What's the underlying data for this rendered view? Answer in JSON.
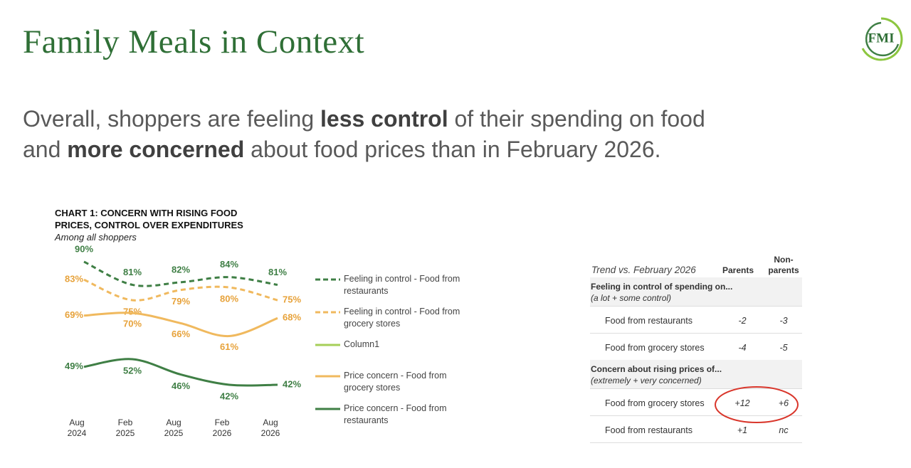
{
  "header": {
    "title": "Family Meals in Context",
    "logo": "FMI"
  },
  "headline": [
    "Overall, shoppers are feeling ",
    "less control",
    " of their spending on food",
    "and ",
    "more concerned",
    " about food prices than in February 2026."
  ],
  "chart_data": {
    "type": "line",
    "title": "CHART 1: CONCERN WITH RISING FOOD PRICES, CONTROL OVER EXPENDITURES",
    "subtitle": "Among all shoppers",
    "categories": [
      "Aug 2024",
      "Feb 2025",
      "Aug 2025",
      "Feb 2026",
      "Aug 2026"
    ],
    "series": [
      {
        "name": "Feeling in control - Food from restaurants",
        "color": "#3f7f45",
        "dashed": true,
        "values": [
          90,
          81,
          82,
          84,
          81
        ],
        "value_labels": [
          "90%",
          "81%",
          "82%",
          "84%",
          "81%"
        ]
      },
      {
        "name": "Feeling in control - Food from grocery stores",
        "color": "#f0b95e",
        "dashed": true,
        "values": [
          83,
          75,
          79,
          80,
          75
        ],
        "value_labels": [
          "83%",
          "75%",
          "79%",
          "80%",
          "75%"
        ]
      },
      {
        "name": "Column1",
        "color": "#a6cf58",
        "dashed": false,
        "values": [
          null,
          null,
          null,
          null,
          null
        ]
      },
      {
        "name": "Price concern - Food from grocery stores",
        "color": "#f0b95e",
        "dashed": false,
        "values": [
          69,
          70,
          66,
          61,
          68
        ],
        "value_labels": [
          "69%",
          "70%",
          "66%",
          "61%",
          "68%"
        ]
      },
      {
        "name": "Price concern - Food from restaurants",
        "color": "#3f7f45",
        "dashed": false,
        "values": [
          49,
          52,
          46,
          42,
          42
        ],
        "value_labels": [
          "49%",
          "52%",
          "46%",
          "42%",
          "42%"
        ]
      }
    ]
  },
  "table": {
    "header": [
      "Trend vs. February 2026",
      "Parents",
      "Non-parents"
    ],
    "sections": [
      {
        "title": "Feeling in control of spending on...",
        "subtitle": "(a lot + some control)",
        "rows": [
          [
            "Food from restaurants",
            "-2",
            "-3"
          ],
          [
            "Food from grocery stores",
            "-4",
            "-5"
          ]
        ]
      },
      {
        "title": "Concern about rising prices of...",
        "subtitle": "(extremely + very concerned)",
        "rows": [
          [
            "Food from grocery stores",
            "+12",
            "+6"
          ],
          [
            "Food from restaurants",
            "+1",
            "nc"
          ]
        ]
      }
    ]
  }
}
